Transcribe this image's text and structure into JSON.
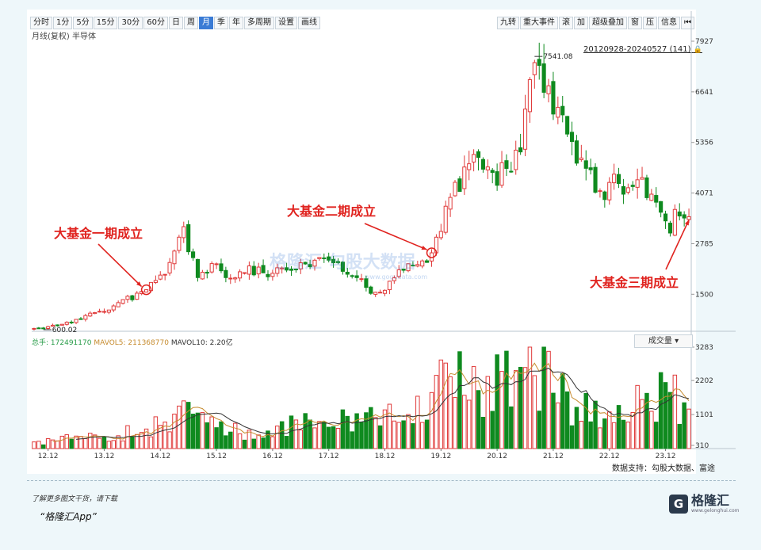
{
  "toolbar": {
    "left": [
      "分时",
      "1分",
      "5分",
      "15分",
      "30分",
      "60分",
      "日",
      "周",
      "月",
      "季",
      "年",
      "多周期",
      "设置",
      "画线"
    ],
    "active": "月",
    "right": [
      "九转",
      "重大事件",
      "滚",
      "加",
      "超级叠加",
      "窗",
      "压",
      "信息",
      "⏮"
    ]
  },
  "chart_title": "月线(复权)  半导体",
  "date_range": "20120928-20240527 (141)",
  "volume_header": {
    "total_label": "总手:",
    "total": "172491170",
    "ma5": "MAVOL5: 211368770",
    "ma10": "MAVOL10: 2.20亿"
  },
  "volume_select": "成交量",
  "data_source": "数据支持：勾股大数据、富途",
  "footer": {
    "line1": "了解更多图文干货，请下载",
    "line2": "“格隆汇App”"
  },
  "brand": {
    "mark": "G",
    "name": "格隆汇",
    "url": "www.gelonghui.com"
  },
  "watermark": "格隆汇  勾股大数据",
  "watermark_url": "www.gogudata.com",
  "colors": {
    "up": "#e03a3a",
    "down": "#0f8a1f",
    "annotation": "#e0231f",
    "ma5": "#c68b2e",
    "ma10": "#333333"
  },
  "chart_data": [
    {
      "type": "candlestick",
      "title": "月线(复权)  半导体",
      "y_ticks": [
        1500,
        2785,
        4071,
        5356,
        6641,
        7927
      ],
      "ylim": [
        600,
        7927
      ],
      "x_ticks": [
        "12.12",
        "13.12",
        "14.12",
        "15.12",
        "16.12",
        "17.12",
        "18.12",
        "19.12",
        "20.12",
        "21.12",
        "22.12",
        "23.12"
      ],
      "x_range": [
        "2012-09",
        "2024-05"
      ],
      "months": 141,
      "high_label": "7541.08",
      "low_label": "600.02",
      "close_anchors": [
        [
          "2012-09",
          660
        ],
        [
          "2012-11",
          620
        ],
        [
          "2013-02",
          760
        ],
        [
          "2013-06",
          850
        ],
        [
          "2013-10",
          1000
        ],
        [
          "2014-01",
          1150
        ],
        [
          "2014-04",
          1300
        ],
        [
          "2014-09",
          1650
        ],
        [
          "2014-12",
          1900
        ],
        [
          "2015-05",
          3050
        ],
        [
          "2015-06",
          2700
        ],
        [
          "2015-08",
          2000
        ],
        [
          "2015-12",
          2300
        ],
        [
          "2016-02",
          1850
        ],
        [
          "2016-06",
          2150
        ],
        [
          "2016-12",
          2050
        ],
        [
          "2017-06",
          2200
        ],
        [
          "2017-11",
          2350
        ],
        [
          "2018-03",
          2150
        ],
        [
          "2018-06",
          1950
        ],
        [
          "2018-10",
          1500
        ],
        [
          "2019-01",
          1750
        ],
        [
          "2019-04",
          2200
        ],
        [
          "2019-10",
          2500
        ],
        [
          "2019-12",
          3250
        ],
        [
          "2020-02",
          4000
        ],
        [
          "2020-07",
          4900
        ],
        [
          "2020-12",
          4500
        ],
        [
          "2021-02",
          4700
        ],
        [
          "2021-05",
          5300
        ],
        [
          "2021-08",
          7200
        ],
        [
          "2021-11",
          6600
        ],
        [
          "2022-04",
          5200
        ],
        [
          "2022-07",
          4900
        ],
        [
          "2022-10",
          3900
        ],
        [
          "2023-01",
          4400
        ],
        [
          "2023-04",
          4200
        ],
        [
          "2023-07",
          4300
        ],
        [
          "2023-10",
          3900
        ],
        [
          "2024-01",
          3000
        ],
        [
          "2024-02",
          3700
        ],
        [
          "2024-05",
          3450
        ]
      ],
      "annotations": [
        {
          "text": "大基金一期成立",
          "date": "2014-09"
        },
        {
          "text": "大基金二期成立",
          "date": "2019-10"
        },
        {
          "text": "大基金三期成立",
          "date": "2024-05"
        }
      ]
    },
    {
      "type": "bar",
      "title": "成交量",
      "y_ticks": [
        310,
        1101,
        2202,
        3283
      ],
      "ylim": [
        0,
        3283
      ],
      "x_ticks": [
        "12.12",
        "13.12",
        "14.12",
        "15.12",
        "16.12",
        "17.12",
        "18.12",
        "19.12",
        "20.12",
        "21.12",
        "22.12",
        "23.12"
      ],
      "series": [
        {
          "name": "MAVOL5"
        },
        {
          "name": "MAVOL10"
        }
      ],
      "volume_anchors": [
        [
          "2012-09",
          150
        ],
        [
          "2013-06",
          350
        ],
        [
          "2014-03",
          400
        ],
        [
          "2014-12",
          750
        ],
        [
          "2015-05",
          1050
        ],
        [
          "2015-09",
          800
        ],
        [
          "2016-06",
          450
        ],
        [
          "2017-03",
          650
        ],
        [
          "2017-11",
          900
        ],
        [
          "2018-07",
          700
        ],
        [
          "2019-04",
          1350
        ],
        [
          "2019-12",
          1800
        ],
        [
          "2020-03",
          2600
        ],
        [
          "2020-09",
          1800
        ],
        [
          "2021-08",
          2500
        ],
        [
          "2022-03",
          1400
        ],
        [
          "2022-10",
          1300
        ],
        [
          "2023-04",
          1400
        ],
        [
          "2024-02",
          1600
        ],
        [
          "2024-05",
          1300
        ]
      ]
    }
  ]
}
